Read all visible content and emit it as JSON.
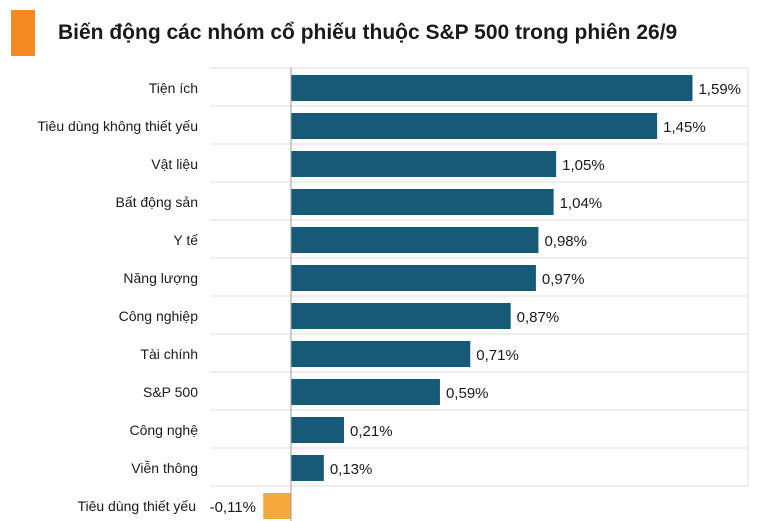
{
  "title": "Biến động các nhóm cổ phiếu thuộc S&P 500 trong phiên 26/9",
  "colors": {
    "accent": "#f58a24",
    "positive": "#175a78",
    "negative": "#f5a93b",
    "grid": "#dcdcdc"
  },
  "chart_data": {
    "type": "bar",
    "orientation": "horizontal",
    "title": "Biến động các nhóm cổ phiếu thuộc S&P 500 trong phiên 26/9",
    "categories": [
      "Tiện ích",
      "Tiêu dùng không thiết yếu",
      "Vật liệu",
      "Bất động sản",
      "Y tế",
      "Năng lượng",
      "Công nghiệp",
      "Tài chính",
      "S&P 500",
      "Công nghệ",
      "Viễn thông",
      "Tiêu dùng thiết yếu"
    ],
    "values": [
      1.59,
      1.45,
      1.05,
      1.04,
      0.98,
      0.97,
      0.87,
      0.71,
      0.59,
      0.21,
      0.13,
      -0.11
    ],
    "value_labels": [
      "1,59%",
      "1,45%",
      "1,05%",
      "1,04%",
      "0,98%",
      "0,97%",
      "0,87%",
      "0,71%",
      "0,59%",
      "0,21%",
      "0,13%",
      "-0,11%"
    ],
    "unit": "%",
    "xlabel": "",
    "ylabel": "",
    "grid": true
  }
}
